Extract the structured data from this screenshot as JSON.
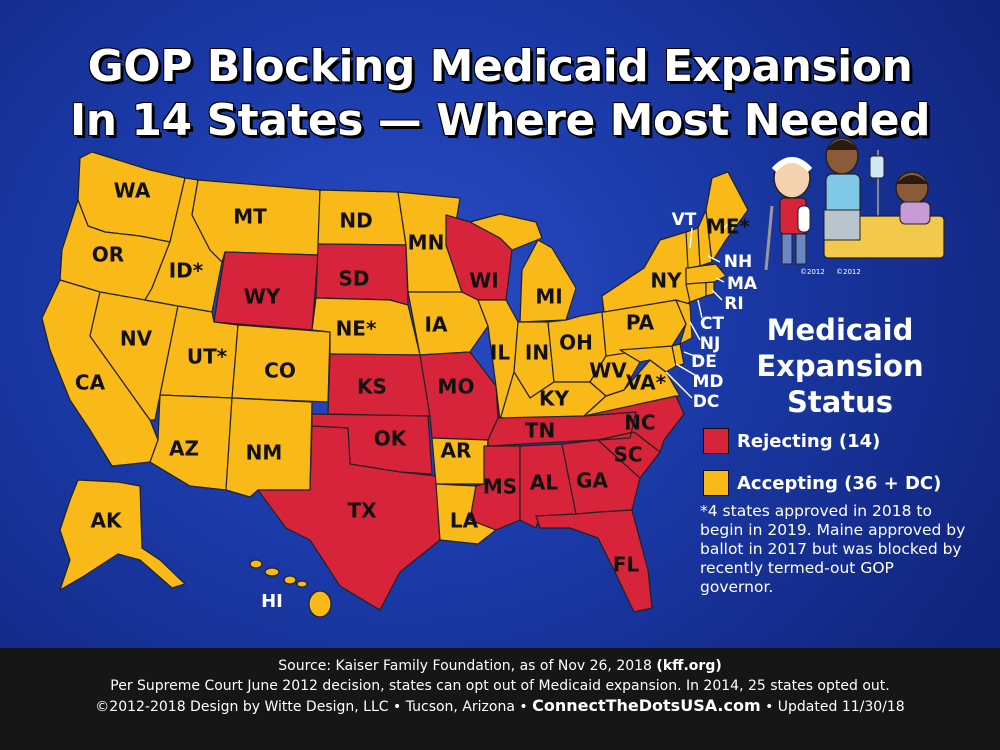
{
  "title": {
    "line1": "GOP Blocking Medicaid Expansion",
    "line2": "In 14 States — Where Most Needed"
  },
  "colors": {
    "rejecting": "#d7243b",
    "accepting": "#f9b919",
    "background": "#1b3aa8",
    "footer": "#161616"
  },
  "legend": {
    "heading_line1": "Medicaid",
    "heading_line2": "Expansion",
    "heading_line3": "Status",
    "rejecting_label": "Rejecting (14)",
    "accepting_label": "Accepting (36 + DC)"
  },
  "footnote": "*4 states approved in 2018 to begin in 2019. Maine approved by ballot in 2017 but was blocked by recently termed-out GOP governor.",
  "states": {
    "WA": "WA",
    "OR": "OR",
    "CA": "CA",
    "NV": "NV",
    "ID": "ID*",
    "MT": "MT",
    "WY": "WY",
    "UT": "UT*",
    "CO": "CO",
    "AZ": "AZ",
    "NM": "NM",
    "ND": "ND",
    "SD": "SD",
    "NE": "NE*",
    "KS": "KS",
    "OK": "OK",
    "TX": "TX",
    "MN": "MN",
    "IA": "IA",
    "MO": "MO",
    "AR": "AR",
    "LA": "LA",
    "WI": "WI",
    "IL": "IL",
    "MI": "MI",
    "IN": "IN",
    "OH": "OH",
    "KY": "KY",
    "TN": "TN",
    "MS": "MS",
    "AL": "AL",
    "GA": "GA",
    "FL": "FL",
    "SC": "SC",
    "NC": "NC",
    "VA": "VA*",
    "WV": "WV",
    "PA": "PA",
    "NY": "NY",
    "ME": "ME*",
    "VT": "VT",
    "NH": "NH",
    "MA": "MA",
    "RI": "RI",
    "CT": "CT",
    "NJ": "NJ",
    "DE": "DE",
    "MD": "MD",
    "DC": "DC",
    "AK": "AK",
    "HI": "HI"
  },
  "status": {
    "rejecting": [
      "WY",
      "SD",
      "WI",
      "KS",
      "MO",
      "OK",
      "TX",
      "TN",
      "MS",
      "AL",
      "GA",
      "SC",
      "NC",
      "FL"
    ],
    "accepting": [
      "WA",
      "OR",
      "CA",
      "NV",
      "ID",
      "MT",
      "UT",
      "CO",
      "AZ",
      "NM",
      "ND",
      "NE",
      "MN",
      "IA",
      "AR",
      "LA",
      "IL",
      "MI",
      "IN",
      "OH",
      "KY",
      "VA",
      "WV",
      "PA",
      "NY",
      "ME",
      "VT",
      "NH",
      "MA",
      "RI",
      "CT",
      "NJ",
      "DE",
      "MD",
      "DC",
      "AK",
      "HI"
    ]
  },
  "cartoon": {
    "copyright1": "©2012",
    "copyright2": "©2012"
  },
  "footer": {
    "line1_prefix": "Source: Kaiser Family Foundation, as of Nov 26, 2018",
    "line1_link": "(kff.org)",
    "line2": "Per Supreme Court June 2012 decision, states can opt out of Medicaid expansion. In 2014, 25 states opted out.",
    "line3_prefix": "©2012-2018 Design by Witte Design, LLC • Tucson, Arizona •",
    "line3_site": "ConnectTheDotsUSA.com",
    "line3_suffix": "• Updated 11/30/18"
  }
}
